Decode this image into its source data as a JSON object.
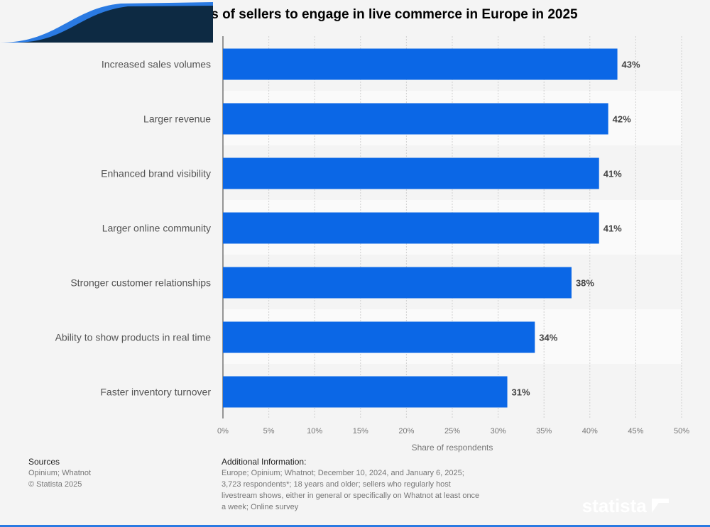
{
  "chart_data": {
    "type": "bar",
    "orientation": "horizontal",
    "title": "Main benefits of sellers to engage in live commerce in Europe in 2025",
    "categories": [
      "Increased sales volumes",
      "Larger revenue",
      "Enhanced brand visibility",
      "Larger online community",
      "Stronger customer relationships",
      "Ability to show products in real time",
      "Faster inventory turnover"
    ],
    "values": [
      43,
      42,
      41,
      41,
      38,
      34,
      31
    ],
    "data_labels": [
      "43%",
      "42%",
      "41%",
      "41%",
      "38%",
      "34%",
      "31%"
    ],
    "xlabel": "Share of respondents",
    "xlim": [
      0,
      50
    ],
    "xticks": [
      "0%",
      "5%",
      "10%",
      "15%",
      "20%",
      "25%",
      "30%",
      "35%",
      "40%",
      "45%",
      "50%"
    ],
    "grid": true,
    "bar_color": "#0b67e6"
  },
  "footer": {
    "sources_heading": "Sources",
    "sources": "Opinium; Whatnot",
    "copyright": "© Statista 2025",
    "info_heading": "Additional Information:",
    "info_lines": [
      "Europe; Opinium; Whatnot; December 10, 2024, and January 6, 2025;",
      "3,723 respondents*; 18 years and older; sellers who regularly host",
      "livestream shows, either in general or specifically on Whatnot at least once",
      "a week; Online survey"
    ]
  },
  "logo": "statista"
}
